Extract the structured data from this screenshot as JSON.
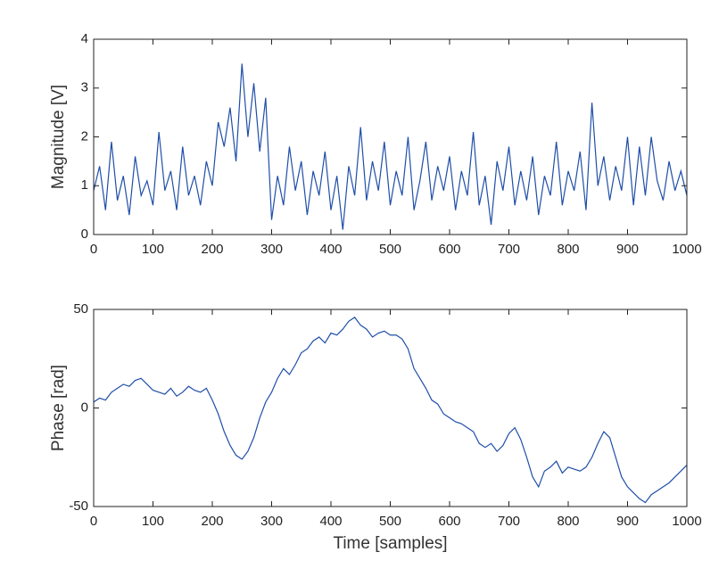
{
  "chart_data": [
    {
      "type": "line",
      "ylabel": "Magnitude [V]",
      "color": "#1f4ea8",
      "x": [
        0,
        10,
        20,
        30,
        40,
        50,
        60,
        70,
        80,
        90,
        100,
        110,
        120,
        130,
        140,
        150,
        160,
        170,
        180,
        190,
        200,
        210,
        220,
        230,
        240,
        250,
        260,
        270,
        280,
        290,
        300,
        310,
        320,
        330,
        340,
        350,
        360,
        370,
        380,
        390,
        400,
        410,
        420,
        430,
        440,
        450,
        460,
        470,
        480,
        490,
        500,
        510,
        520,
        530,
        540,
        550,
        560,
        570,
        580,
        590,
        600,
        610,
        620,
        630,
        640,
        650,
        660,
        670,
        680,
        690,
        700,
        710,
        720,
        730,
        740,
        750,
        760,
        770,
        780,
        790,
        800,
        810,
        820,
        830,
        840,
        850,
        860,
        870,
        880,
        890,
        900,
        910,
        920,
        930,
        940,
        950,
        960,
        970,
        980,
        990,
        1000
      ],
      "values": [
        0.9,
        1.4,
        0.5,
        1.9,
        0.7,
        1.2,
        0.4,
        1.6,
        0.8,
        1.1,
        0.6,
        2.1,
        0.9,
        1.3,
        0.5,
        1.8,
        0.8,
        1.2,
        0.6,
        1.5,
        1.0,
        2.3,
        1.8,
        2.6,
        1.5,
        3.5,
        2.0,
        3.1,
        1.7,
        2.8,
        0.3,
        1.2,
        0.6,
        1.8,
        0.9,
        1.5,
        0.4,
        1.3,
        0.8,
        1.7,
        0.5,
        1.2,
        0.1,
        1.4,
        0.8,
        2.2,
        0.7,
        1.5,
        0.9,
        1.9,
        0.6,
        1.3,
        0.8,
        2.0,
        0.5,
        1.1,
        1.9,
        0.7,
        1.4,
        0.9,
        1.6,
        0.5,
        1.3,
        0.8,
        2.1,
        0.6,
        1.2,
        0.2,
        1.5,
        0.9,
        1.8,
        0.6,
        1.3,
        0.7,
        1.6,
        0.4,
        1.2,
        0.8,
        1.9,
        0.6,
        1.3,
        0.9,
        1.7,
        0.5,
        2.7,
        1.0,
        1.6,
        0.7,
        1.4,
        0.9,
        2.0,
        0.6,
        1.8,
        0.8,
        2.0,
        1.1,
        0.7,
        1.5,
        0.9,
        1.3,
        0.8
      ],
      "xlim": [
        0,
        1000
      ],
      "ylim": [
        0,
        4
      ],
      "xticks": [
        0,
        100,
        200,
        300,
        400,
        500,
        600,
        700,
        800,
        900,
        1000
      ],
      "yticks": [
        0,
        1,
        2,
        3,
        4
      ]
    },
    {
      "type": "line",
      "ylabel": "Phase [rad]",
      "xlabel": "Time [samples]",
      "color": "#1f4ea8",
      "x": [
        0,
        10,
        20,
        30,
        40,
        50,
        60,
        70,
        80,
        90,
        100,
        110,
        120,
        130,
        140,
        150,
        160,
        170,
        180,
        190,
        200,
        210,
        220,
        230,
        240,
        250,
        260,
        270,
        280,
        290,
        300,
        310,
        320,
        330,
        340,
        350,
        360,
        370,
        380,
        390,
        400,
        410,
        420,
        430,
        440,
        450,
        460,
        470,
        480,
        490,
        500,
        510,
        520,
        530,
        540,
        550,
        560,
        570,
        580,
        590,
        600,
        610,
        620,
        630,
        640,
        650,
        660,
        670,
        680,
        690,
        700,
        710,
        720,
        730,
        740,
        750,
        760,
        770,
        780,
        790,
        800,
        810,
        820,
        830,
        840,
        850,
        860,
        870,
        880,
        890,
        900,
        910,
        920,
        930,
        940,
        950,
        960,
        970,
        980,
        990,
        1000
      ],
      "values": [
        3,
        5,
        4,
        8,
        10,
        12,
        11,
        14,
        15,
        12,
        9,
        8,
        7,
        10,
        6,
        8,
        11,
        9,
        8,
        10,
        4,
        -3,
        -12,
        -19,
        -24,
        -26,
        -22,
        -15,
        -5,
        3,
        8,
        15,
        20,
        17,
        22,
        28,
        30,
        34,
        36,
        33,
        38,
        37,
        40,
        44,
        46,
        42,
        40,
        36,
        38,
        39,
        37,
        37,
        35,
        30,
        20,
        15,
        10,
        4,
        2,
        -3,
        -5,
        -7,
        -8,
        -10,
        -12,
        -18,
        -20,
        -18,
        -22,
        -19,
        -13,
        -10,
        -16,
        -25,
        -35,
        -40,
        -32,
        -30,
        -27,
        -33,
        -30,
        -31,
        -32,
        -30,
        -25,
        -18,
        -12,
        -15,
        -25,
        -35,
        -40,
        -43,
        -46,
        -48,
        -44,
        -42,
        -40,
        -38,
        -35,
        -32,
        -29
      ],
      "xlim": [
        0,
        1000
      ],
      "ylim": [
        -50,
        50
      ],
      "xticks": [
        0,
        100,
        200,
        300,
        400,
        500,
        600,
        700,
        800,
        900,
        1000
      ],
      "yticks": [
        -50,
        0,
        50
      ]
    }
  ]
}
